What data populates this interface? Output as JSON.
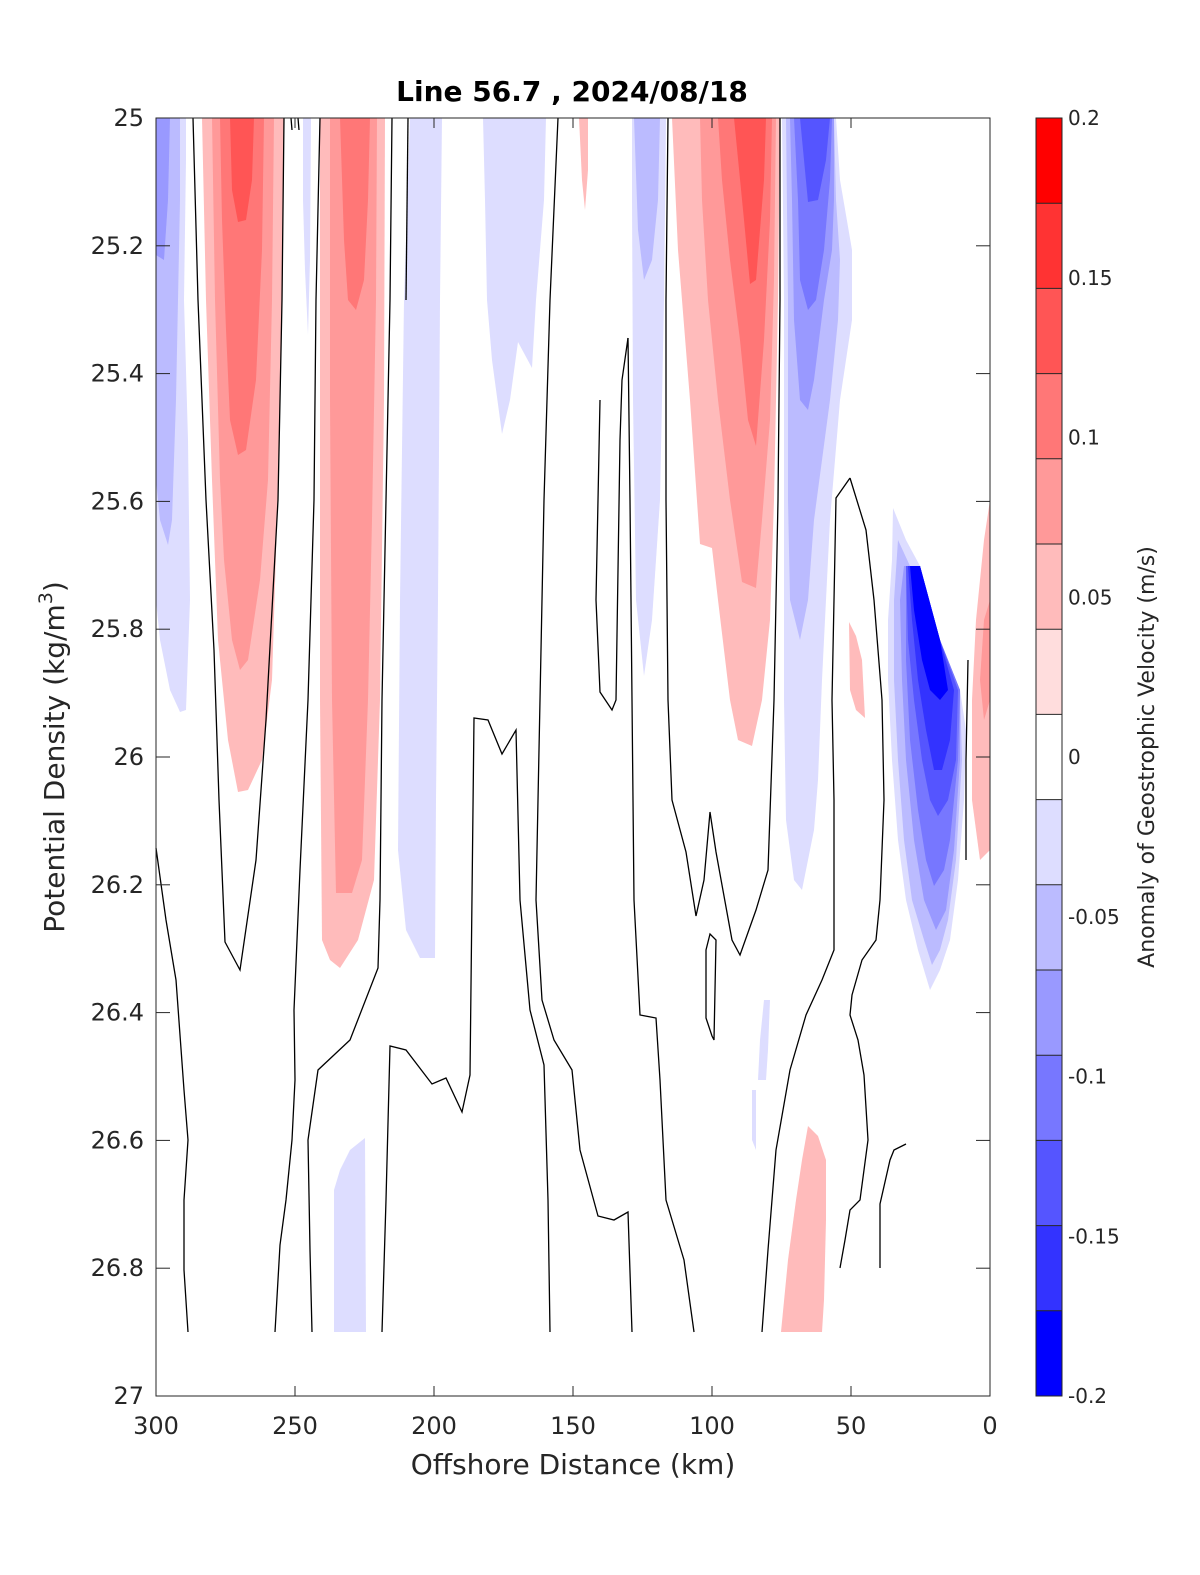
{
  "chart_data": {
    "type": "heatmap",
    "title": "Line 56.7 , 2024/08/18",
    "xlabel": "Offshore Distance (km)",
    "ylabel_main": "Potential Density (kg/m",
    "ylabel_sup": "3",
    "ylabel_close": ")",
    "xlim": [
      300,
      0
    ],
    "ylim": [
      25,
      27
    ],
    "x_reversed": true,
    "y_reversed": true,
    "xticks": [
      300,
      250,
      200,
      150,
      100,
      50,
      0
    ],
    "xtick_labels": [
      "300",
      "250",
      "200",
      "150",
      "100",
      "50",
      "0"
    ],
    "yticks": [
      25,
      25.2,
      25.4,
      25.6,
      25.8,
      26,
      26.2,
      26.4,
      26.6,
      26.8,
      27
    ],
    "ytick_labels": [
      "25",
      "25.2",
      "25.4",
      "25.6",
      "25.8",
      "26",
      "26.2",
      "26.4",
      "26.6",
      "26.8",
      "27"
    ],
    "colorbar": {
      "label": "Anomaly of Geostrophic Velocity (m/s)",
      "range": [
        -0.2,
        0.2
      ],
      "ticks": [
        0.2,
        0.15,
        0.1,
        0.05,
        0,
        -0.05,
        -0.1,
        -0.15,
        -0.2
      ],
      "tick_labels": [
        "0.2",
        "0.15",
        "0.1",
        "0.05",
        "0",
        "-0.05",
        "-0.1",
        "-0.15",
        "-0.2"
      ],
      "levels": [
        -0.2,
        -0.175,
        -0.15,
        -0.125,
        -0.1,
        -0.075,
        -0.05,
        -0.025,
        0.025,
        0.05,
        0.075,
        0.1,
        0.125,
        0.15,
        0.175,
        0.2
      ],
      "colors_top_to_bottom": [
        "#ff0000",
        "#ff3333",
        "#ff5555",
        "#ff7777",
        "#ff9999",
        "#ffbbbb",
        "#ffdddd",
        "#ffffff",
        "#ddddff",
        "#bbbbff",
        "#9999ff",
        "#7777ff",
        "#5555ff",
        "#3333ff",
        "#0000ff"
      ]
    },
    "contour_lines": "zero-velocity contour, black",
    "features": [
      {
        "name": "positive core",
        "x_center": 270,
        "density_top": 25.0,
        "density_bottom": 26.05,
        "peak_value": 0.125
      },
      {
        "name": "positive core",
        "x_center": 230,
        "density_top": 25.0,
        "density_bottom": 26.33,
        "peak_value": 0.1
      },
      {
        "name": "positive core",
        "x_center": 88,
        "density_top": 25.0,
        "density_bottom": 25.98,
        "peak_value": 0.125
      },
      {
        "name": "negative core",
        "x_center": 62,
        "density_top": 25.0,
        "density_bottom": 26.2,
        "peak_value": -0.15
      },
      {
        "name": "negative core",
        "x_center": 20,
        "density_top": 25.7,
        "density_bottom": 26.35,
        "peak_value": -0.2
      },
      {
        "name": "negative band",
        "x_center": 298,
        "density_top": 25.0,
        "density_bottom": 25.93,
        "peak_value": -0.1
      },
      {
        "name": "negative band",
        "x_center": 200,
        "density_top": 25.0,
        "density_bottom": 26.31,
        "peak_value": -0.05
      },
      {
        "name": "negative band",
        "x_center": 126,
        "density_top": 25.0,
        "density_bottom": 25.87,
        "peak_value": -0.075
      },
      {
        "name": "positive deep patch",
        "x_center": 66,
        "density_top": 26.58,
        "density_bottom": 26.9,
        "peak_value": 0.05
      },
      {
        "name": "negative deep patch",
        "x_center": 232,
        "density_top": 26.6,
        "density_bottom": 26.9,
        "peak_value": -0.05
      }
    ]
  }
}
